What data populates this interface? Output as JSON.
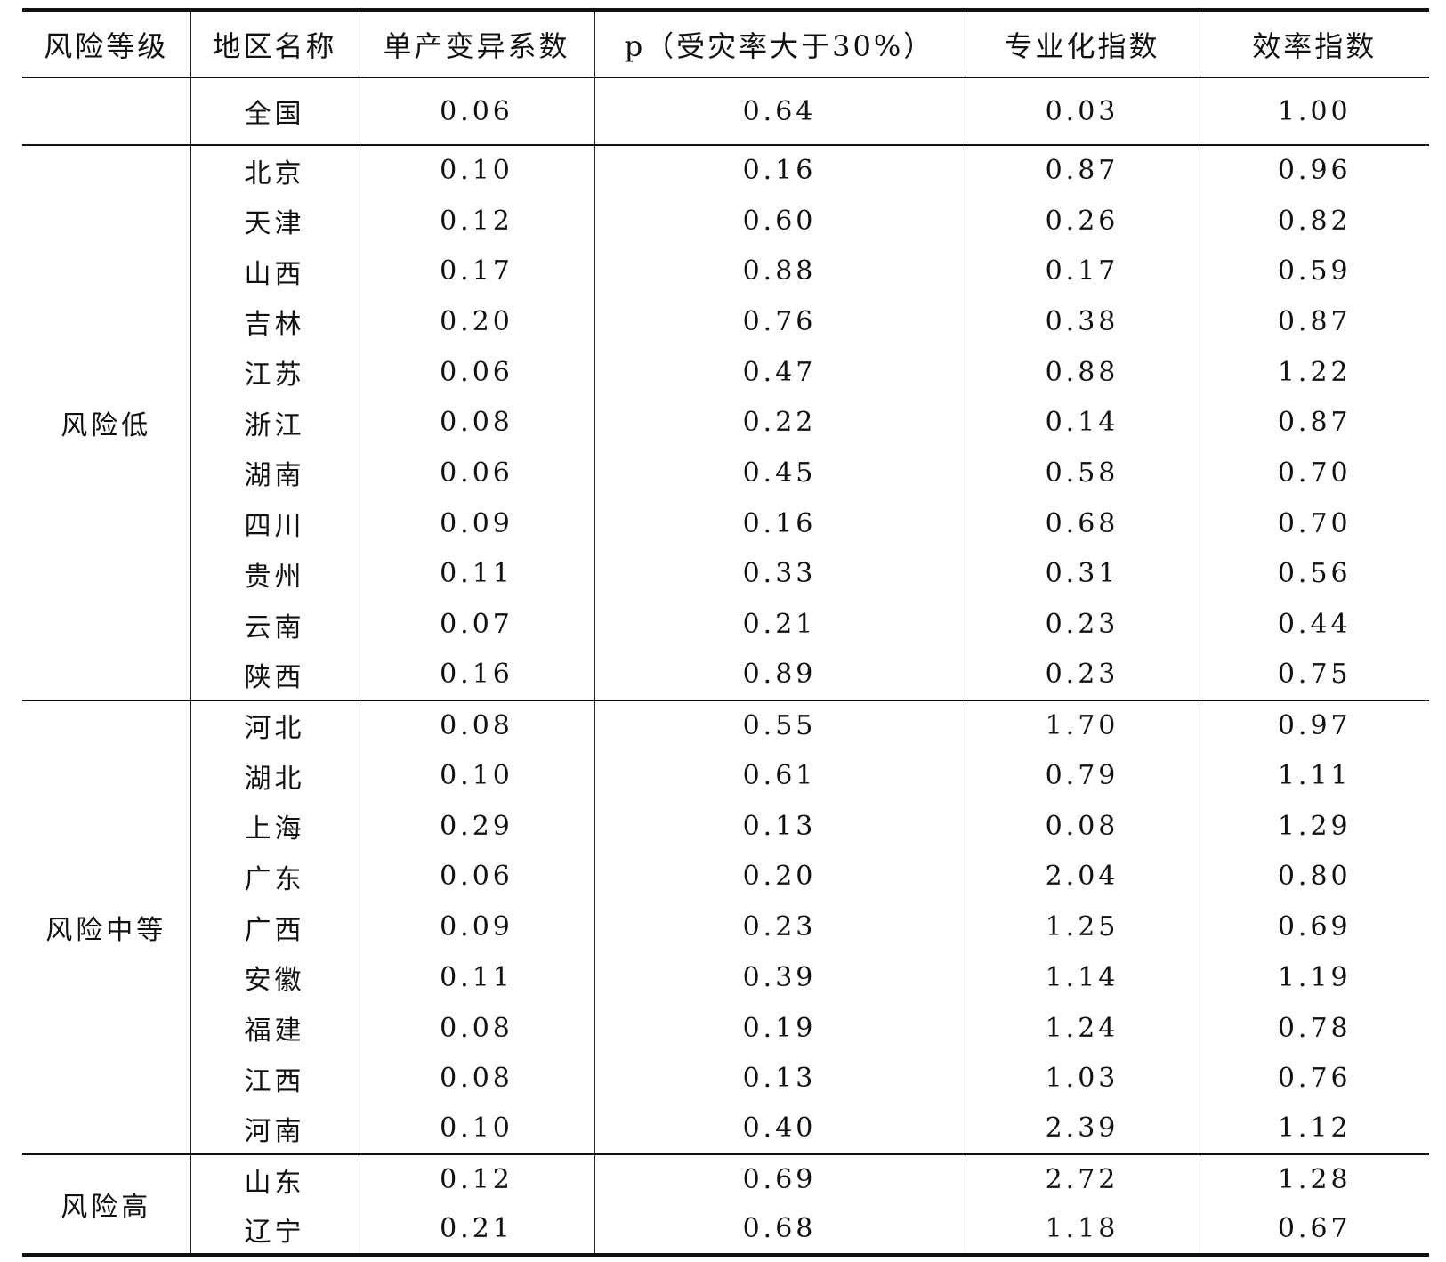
{
  "headers": [
    "风险等级",
    "地区名称",
    "单产变异系数",
    "p（受灾率大于30%）",
    "专业化指数",
    "效率指数"
  ],
  "national": {
    "level": "",
    "region": "全国",
    "cv": "0.06",
    "p": "0.64",
    "spec": "0.03",
    "eff": "1.00"
  },
  "groups": [
    {
      "level": "风险低",
      "rows": [
        {
          "region": "北京",
          "cv": "0.10",
          "p": "0.16",
          "spec": "0.87",
          "eff": "0.96"
        },
        {
          "region": "天津",
          "cv": "0.12",
          "p": "0.60",
          "spec": "0.26",
          "eff": "0.82"
        },
        {
          "region": "山西",
          "cv": "0.17",
          "p": "0.88",
          "spec": "0.17",
          "eff": "0.59"
        },
        {
          "region": "吉林",
          "cv": "0.20",
          "p": "0.76",
          "spec": "0.38",
          "eff": "0.87"
        },
        {
          "region": "江苏",
          "cv": "0.06",
          "p": "0.47",
          "spec": "0.88",
          "eff": "1.22"
        },
        {
          "region": "浙江",
          "cv": "0.08",
          "p": "0.22",
          "spec": "0.14",
          "eff": "0.87"
        },
        {
          "region": "湖南",
          "cv": "0.06",
          "p": "0.45",
          "spec": "0.58",
          "eff": "0.70"
        },
        {
          "region": "四川",
          "cv": "0.09",
          "p": "0.16",
          "spec": "0.68",
          "eff": "0.70"
        },
        {
          "region": "贵州",
          "cv": "0.11",
          "p": "0.33",
          "spec": "0.31",
          "eff": "0.56"
        },
        {
          "region": "云南",
          "cv": "0.07",
          "p": "0.21",
          "spec": "0.23",
          "eff": "0.44"
        },
        {
          "region": "陕西",
          "cv": "0.16",
          "p": "0.89",
          "spec": "0.23",
          "eff": "0.75"
        }
      ]
    },
    {
      "level": "风险中等",
      "rows": [
        {
          "region": "河北",
          "cv": "0.08",
          "p": "0.55",
          "spec": "1.70",
          "eff": "0.97"
        },
        {
          "region": "湖北",
          "cv": "0.10",
          "p": "0.61",
          "spec": "0.79",
          "eff": "1.11"
        },
        {
          "region": "上海",
          "cv": "0.29",
          "p": "0.13",
          "spec": "0.08",
          "eff": "1.29"
        },
        {
          "region": "广东",
          "cv": "0.06",
          "p": "0.20",
          "spec": "2.04",
          "eff": "0.80"
        },
        {
          "region": "广西",
          "cv": "0.09",
          "p": "0.23",
          "spec": "1.25",
          "eff": "0.69"
        },
        {
          "region": "安徽",
          "cv": "0.11",
          "p": "0.39",
          "spec": "1.14",
          "eff": "1.19"
        },
        {
          "region": "福建",
          "cv": "0.08",
          "p": "0.19",
          "spec": "1.24",
          "eff": "0.78"
        },
        {
          "region": "江西",
          "cv": "0.08",
          "p": "0.13",
          "spec": "1.03",
          "eff": "0.76"
        },
        {
          "region": "河南",
          "cv": "0.10",
          "p": "0.40",
          "spec": "2.39",
          "eff": "1.12"
        }
      ]
    },
    {
      "level": "风险高",
      "rows": [
        {
          "region": "山东",
          "cv": "0.12",
          "p": "0.69",
          "spec": "2.72",
          "eff": "1.28"
        },
        {
          "region": "辽宁",
          "cv": "0.21",
          "p": "0.68",
          "spec": "1.18",
          "eff": "0.67"
        }
      ]
    }
  ]
}
